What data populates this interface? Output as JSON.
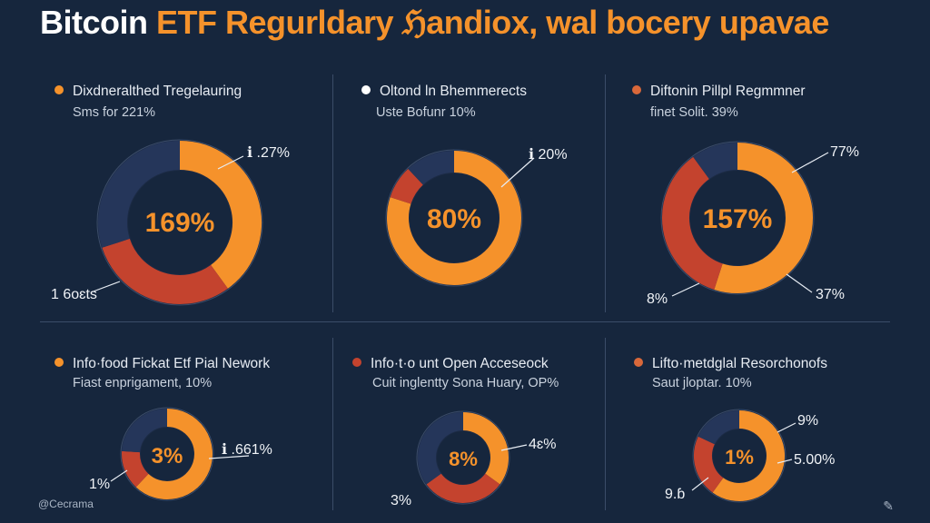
{
  "title": {
    "part1": "Bitcoin ",
    "part2": "ETF Regurldary ",
    "part3": "ℌandiox, ",
    "part4": "wal bocery upavae"
  },
  "colors": {
    "background": "#16263d",
    "orange": "#f5922b",
    "navy": "#25365a",
    "red": "#c4432e",
    "white": "#ffffff"
  },
  "footer": "@Cecrama",
  "corner_icon": "pen-icon",
  "chart_data": [
    {
      "type": "pie",
      "heading": "Dixdneralthed Tregelauring",
      "subheading": "Sms for 221%",
      "bullet_color": "#f5922b",
      "center_label": "169%",
      "callouts": [
        "ℹ .27%",
        "1 6oɛts"
      ],
      "segments": [
        {
          "color": "#f5922b",
          "value": 40
        },
        {
          "color": "#c4432e",
          "value": 30
        },
        {
          "color": "#25365a",
          "value": 30
        }
      ]
    },
    {
      "type": "pie",
      "heading": "Oltond ln Bhemmerects",
      "subheading": "Uste Bofunr 10%",
      "bullet_color": "#ffffff",
      "center_label": "80%",
      "callouts": [
        "ℹ 20%"
      ],
      "segments": [
        {
          "color": "#f5922b",
          "value": 80
        },
        {
          "color": "#c4432e",
          "value": 8
        },
        {
          "color": "#25365a",
          "value": 12
        }
      ]
    },
    {
      "type": "pie",
      "heading": "Diftonin Pillpl Regmmner",
      "subheading": "finet Solit. 39%",
      "bullet_color": "#d9683a",
      "center_label": "157%",
      "callouts": [
        "77%",
        "8%",
        "37%"
      ],
      "segments": [
        {
          "color": "#f5922b",
          "value": 55
        },
        {
          "color": "#c4432e",
          "value": 35
        },
        {
          "color": "#25365a",
          "value": 10
        }
      ]
    },
    {
      "type": "pie",
      "heading": "Info·food Fickat Etf Pial Nework",
      "subheading": "Fiast enprigament, 10%",
      "bullet_color": "#f5922b",
      "center_label": "3%",
      "callouts": [
        "ℹ .661%",
        "1%"
      ],
      "segments": [
        {
          "color": "#f5922b",
          "value": 62
        },
        {
          "color": "#c4432e",
          "value": 14
        },
        {
          "color": "#25365a",
          "value": 24
        }
      ]
    },
    {
      "type": "pie",
      "heading": "Info·t·o unt Open Acceseock",
      "subheading": "Cuit inglentty Sona Huary, OP%",
      "bullet_color": "#c4432e",
      "center_label": "8%",
      "callouts": [
        "4ɛ%",
        "3%"
      ],
      "segments": [
        {
          "color": "#f5922b",
          "value": 35
        },
        {
          "color": "#c4432e",
          "value": 30
        },
        {
          "color": "#25365a",
          "value": 35
        }
      ]
    },
    {
      "type": "pie",
      "heading": "Lifto·metdglal Resorchonofs",
      "subheading": "Saut jloptar. 10%",
      "bullet_color": "#d9683a",
      "center_label": "1%",
      "callouts": [
        "9%",
        "5.00%",
        "9.ɓ"
      ],
      "segments": [
        {
          "color": "#f5922b",
          "value": 60
        },
        {
          "color": "#c4432e",
          "value": 22
        },
        {
          "color": "#25365a",
          "value": 18
        }
      ]
    }
  ]
}
